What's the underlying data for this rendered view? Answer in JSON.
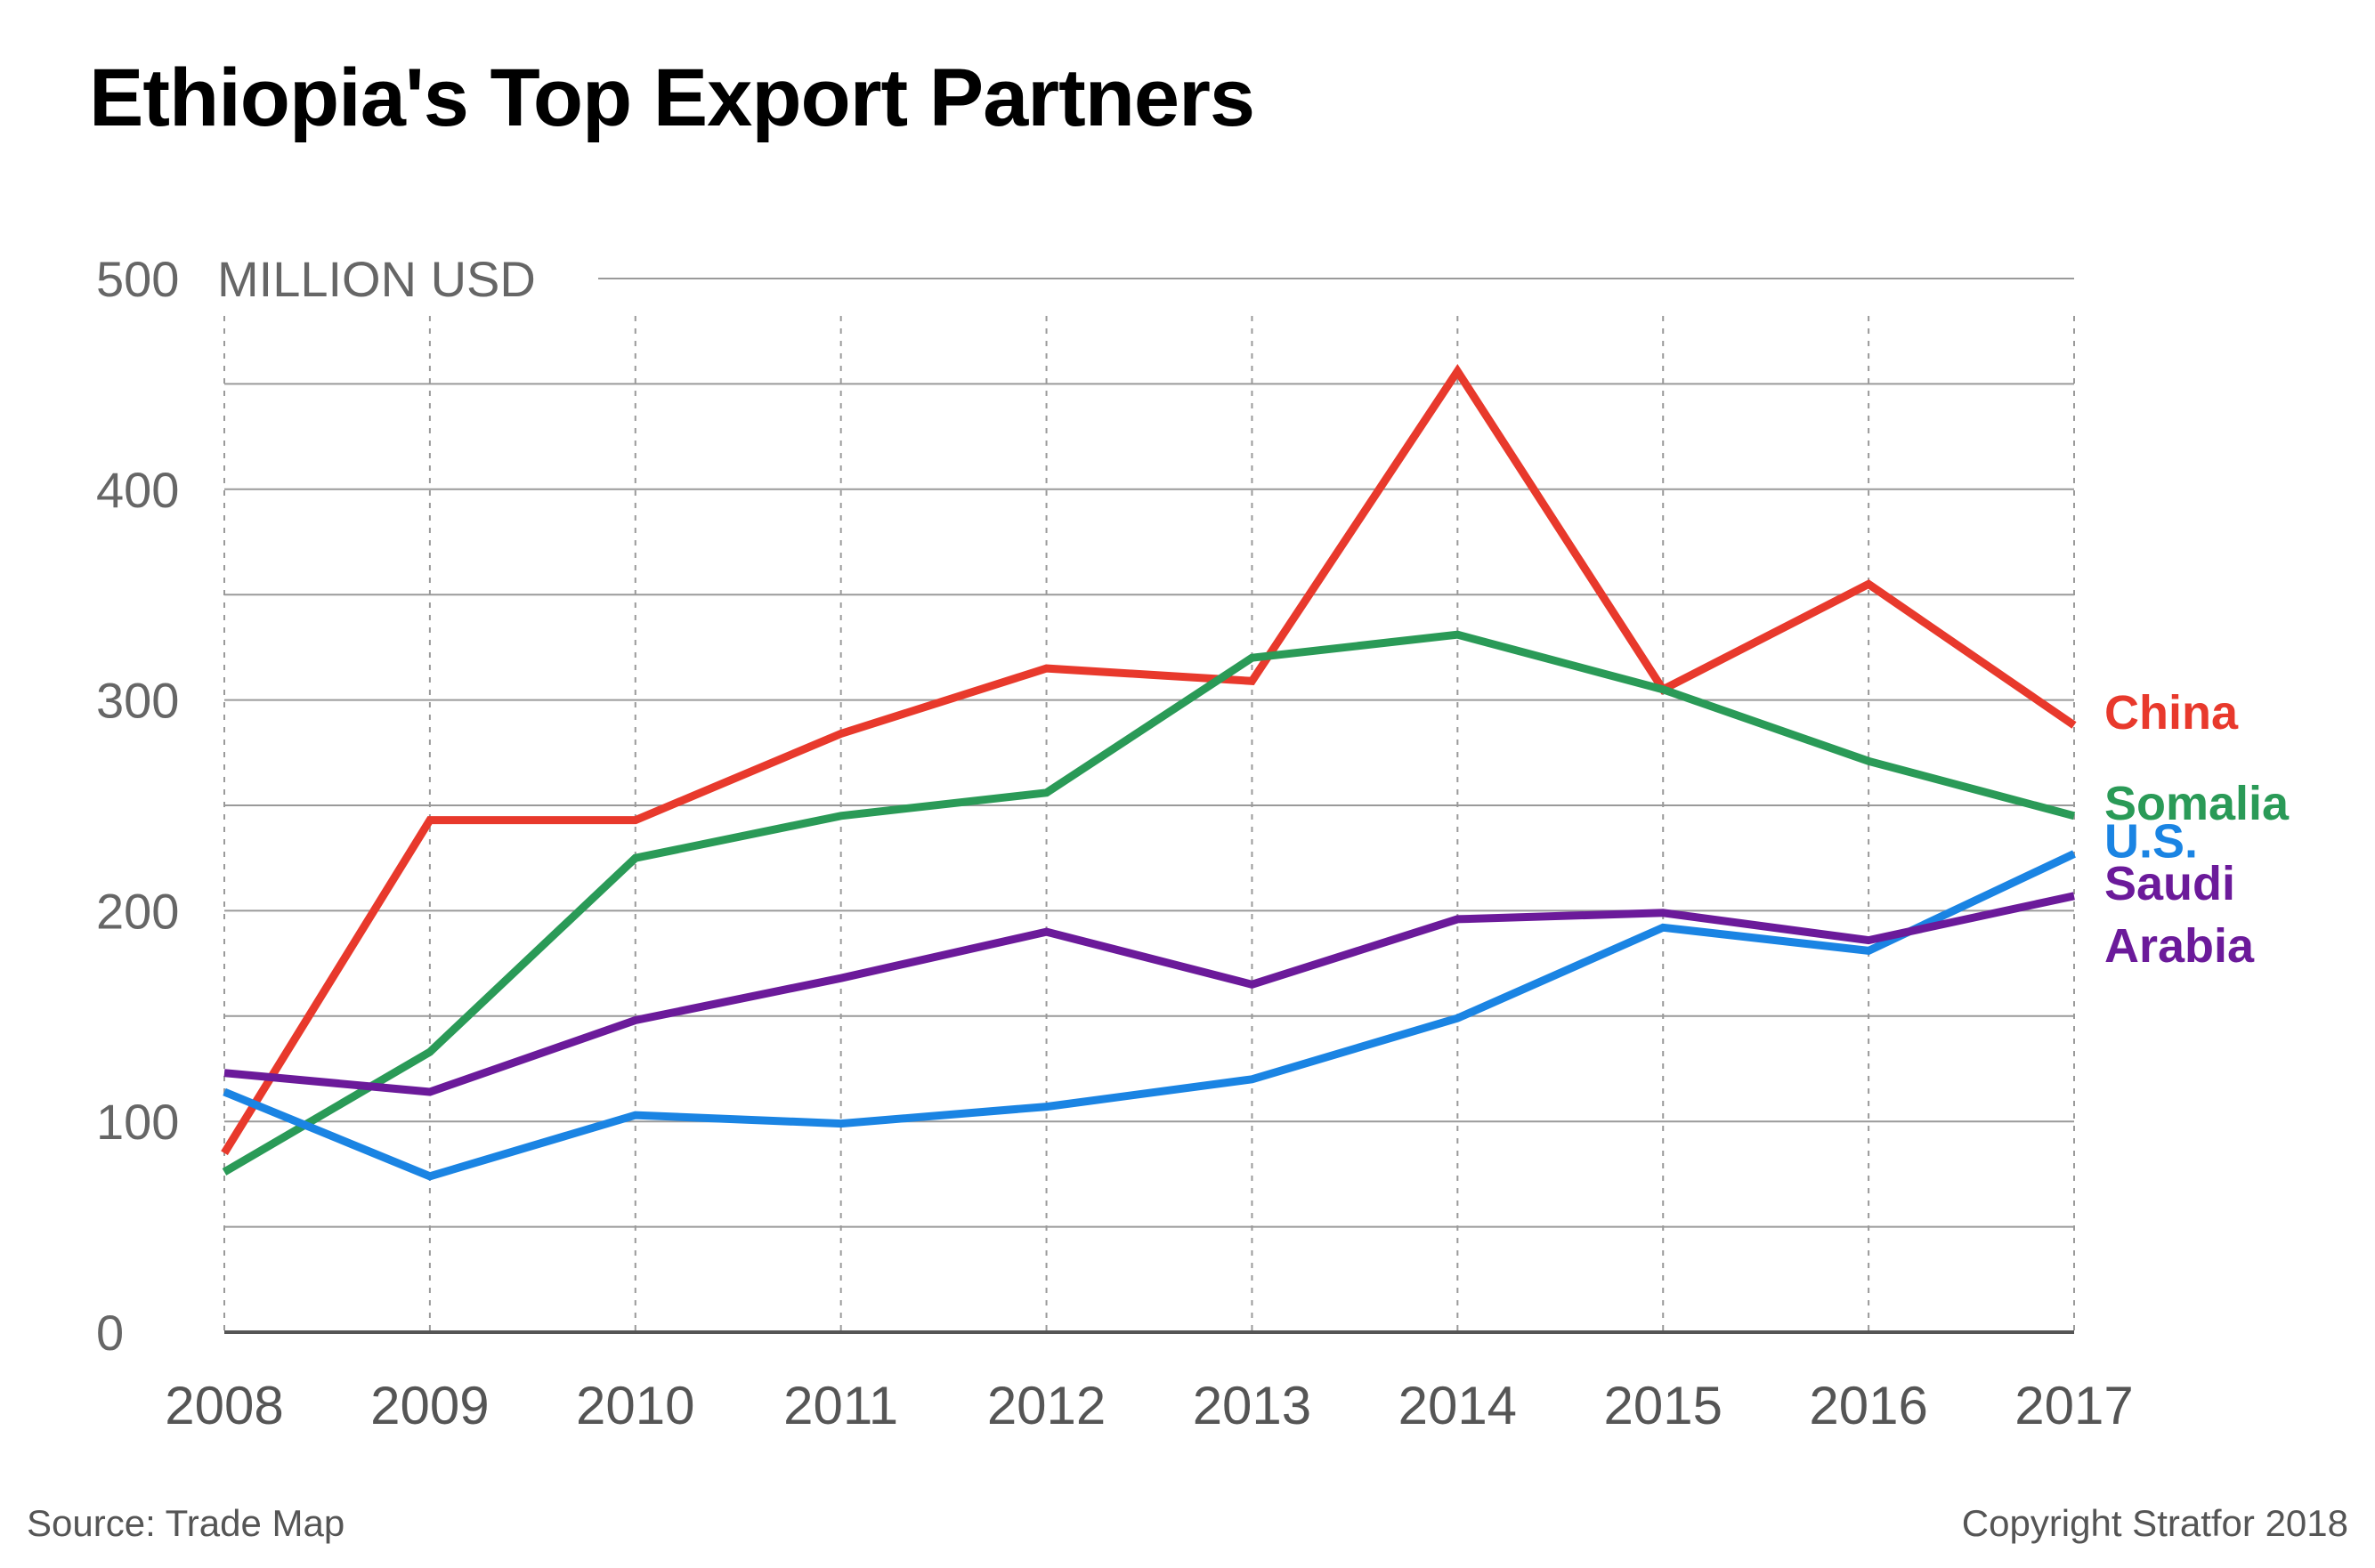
{
  "title": "Ethiopia's Top Export Partners",
  "source": "Source: Trade Map",
  "copyright": "Copyright Stratfor 2018",
  "chart_data": {
    "type": "line",
    "ylabel": "MILLION USD",
    "ylim": [
      0,
      500
    ],
    "y_ticks": [
      "0",
      "100",
      "200",
      "300",
      "400",
      "500"
    ],
    "grid": true,
    "x": [
      "2008",
      "2009",
      "2010",
      "2011",
      "2012",
      "2013",
      "2014",
      "2015",
      "2016",
      "2017"
    ],
    "series": [
      {
        "name": "China",
        "color": "#e8392c",
        "values": [
          85,
          243,
          243,
          284,
          315,
          309,
          456,
          305,
          355,
          288
        ]
      },
      {
        "name": "Somalia",
        "color": "#2a9a57",
        "values": [
          76,
          133,
          225,
          245,
          256,
          320,
          331,
          305,
          271,
          245
        ]
      },
      {
        "name": "U.S.",
        "color": "#1a84e3",
        "values": [
          114,
          74,
          103,
          99,
          107,
          120,
          149,
          192,
          181,
          227
        ]
      },
      {
        "name": "Saudi Arabia",
        "label_lines": [
          "Saudi",
          "Arabia"
        ],
        "color": "#6b1a9a",
        "values": [
          123,
          114,
          148,
          168,
          190,
          165,
          196,
          199,
          186,
          207
        ]
      }
    ]
  }
}
